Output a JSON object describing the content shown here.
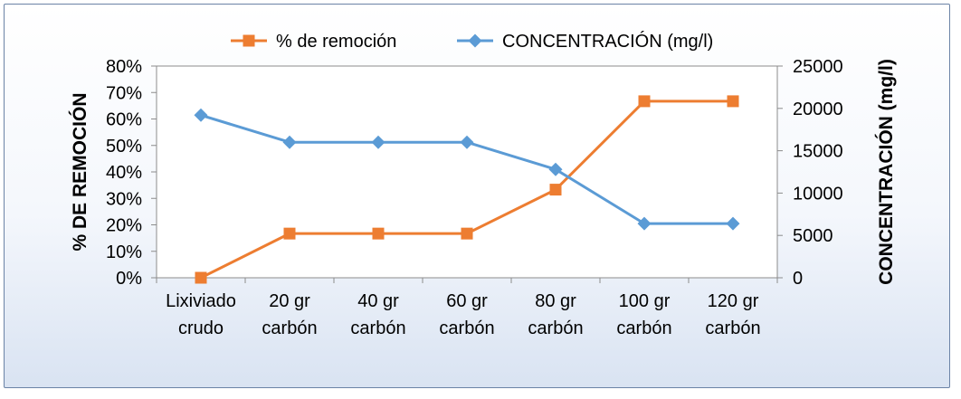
{
  "chart_data": {
    "type": "line",
    "categories": [
      [
        "Lixiviado",
        "crudo"
      ],
      [
        "20 gr",
        "carbón"
      ],
      [
        "40 gr",
        "carbón"
      ],
      [
        "60 gr",
        "carbón"
      ],
      [
        "80 gr",
        "carbón"
      ],
      [
        "100 gr",
        "carbón"
      ],
      [
        "120 gr",
        "carbón"
      ]
    ],
    "series": [
      {
        "name": "% de remoción",
        "axis": "left",
        "marker": "square",
        "color": "#ED7D31",
        "values": [
          0.0,
          0.167,
          0.167,
          0.167,
          0.333,
          0.667,
          0.667
        ]
      },
      {
        "name": "CONCENTRACIÓN (mg/l)",
        "axis": "right",
        "marker": "diamond",
        "color": "#5B9BD5",
        "values": [
          19200,
          16000,
          16000,
          16000,
          12800,
          6400,
          6400
        ]
      }
    ],
    "ylabel_left": "% DE REMOCIÓN",
    "ylabel_right": "CONCENTRACIÓN (mg/l)",
    "ylim_left": [
      0,
      0.8
    ],
    "ylim_right": [
      0,
      25000
    ],
    "yticks_left": [
      "0%",
      "10%",
      "20%",
      "30%",
      "40%",
      "50%",
      "60%",
      "70%",
      "80%"
    ],
    "yticks_right": [
      "0",
      "5000",
      "10000",
      "15000",
      "20000",
      "25000"
    ],
    "legend_position": "top",
    "grid": false
  }
}
